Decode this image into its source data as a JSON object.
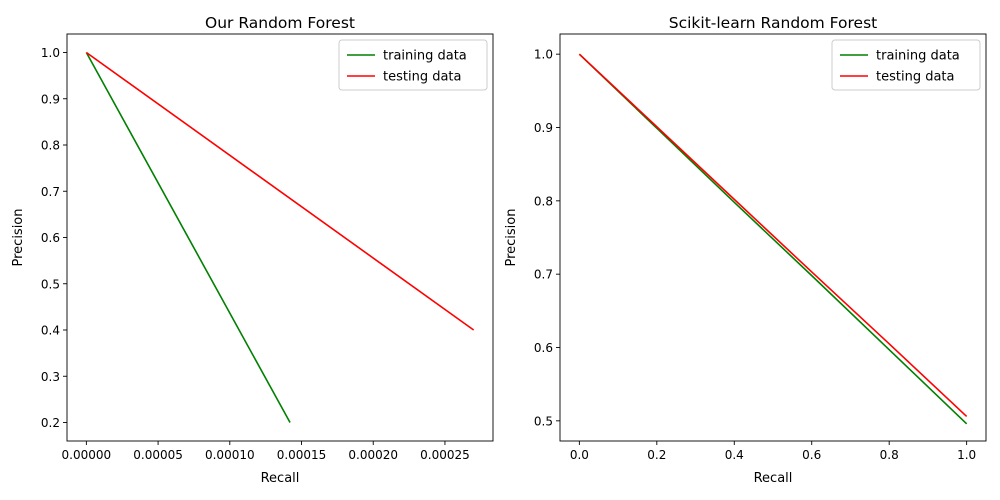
{
  "colors": {
    "training": "#008000",
    "testing": "#ff0000",
    "axis": "#000000",
    "legend_border": "#cccccc"
  },
  "chart_data": [
    {
      "type": "line",
      "title": "Our Random Forest",
      "xlabel": "Recall",
      "ylabel": "Precision",
      "xlim": [
        -1.35e-05,
        0.0002835
      ],
      "ylim": [
        0.16,
        1.04
      ],
      "grid": false,
      "legend": "top-right",
      "xticks": [
        0,
        5e-05,
        0.0001,
        0.00015,
        0.0002,
        0.00025
      ],
      "xtick_labels": [
        "0.00000",
        "0.00005",
        "0.00010",
        "0.00015",
        "0.00020",
        "0.00025"
      ],
      "yticks": [
        0.2,
        0.3,
        0.4,
        0.5,
        0.6,
        0.7,
        0.8,
        0.9,
        1.0
      ],
      "ytick_labels": [
        "0.2",
        "0.3",
        "0.4",
        "0.5",
        "0.6",
        "0.7",
        "0.8",
        "0.9",
        "1.0"
      ],
      "series": [
        {
          "name": "training data",
          "color_key": "training",
          "x": [
            0.0,
            0.000142
          ],
          "y": [
            1.0,
            0.2
          ]
        },
        {
          "name": "testing data",
          "color_key": "testing",
          "x": [
            0.0,
            0.00027
          ],
          "y": [
            1.0,
            0.4
          ]
        }
      ]
    },
    {
      "type": "line",
      "title": "Scikit-learn Random Forest",
      "xlabel": "Recall",
      "ylabel": "Precision",
      "xlim": [
        -0.05,
        1.05
      ],
      "ylim": [
        0.4725,
        1.0275
      ],
      "grid": false,
      "legend": "top-right",
      "xticks": [
        0,
        0.2,
        0.4,
        0.6,
        0.8,
        1.0
      ],
      "xtick_labels": [
        "0.0",
        "0.2",
        "0.4",
        "0.6",
        "0.8",
        "1.0"
      ],
      "yticks": [
        0.5,
        0.6,
        0.7,
        0.8,
        0.9,
        1.0
      ],
      "ytick_labels": [
        "0.5",
        "0.6",
        "0.7",
        "0.8",
        "0.9",
        "1.0"
      ],
      "series": [
        {
          "name": "training data",
          "color_key": "training",
          "x": [
            0.0,
            0.2,
            0.4,
            0.6,
            0.8,
            1.0
          ],
          "y": [
            1.0,
            0.899,
            0.798,
            0.698,
            0.597,
            0.496
          ]
        },
        {
          "name": "testing data",
          "color_key": "testing",
          "x": [
            0.0,
            0.2,
            0.4,
            0.6,
            0.8,
            1.0
          ],
          "y": [
            1.0,
            0.901,
            0.802,
            0.703,
            0.605,
            0.506
          ]
        }
      ]
    }
  ]
}
